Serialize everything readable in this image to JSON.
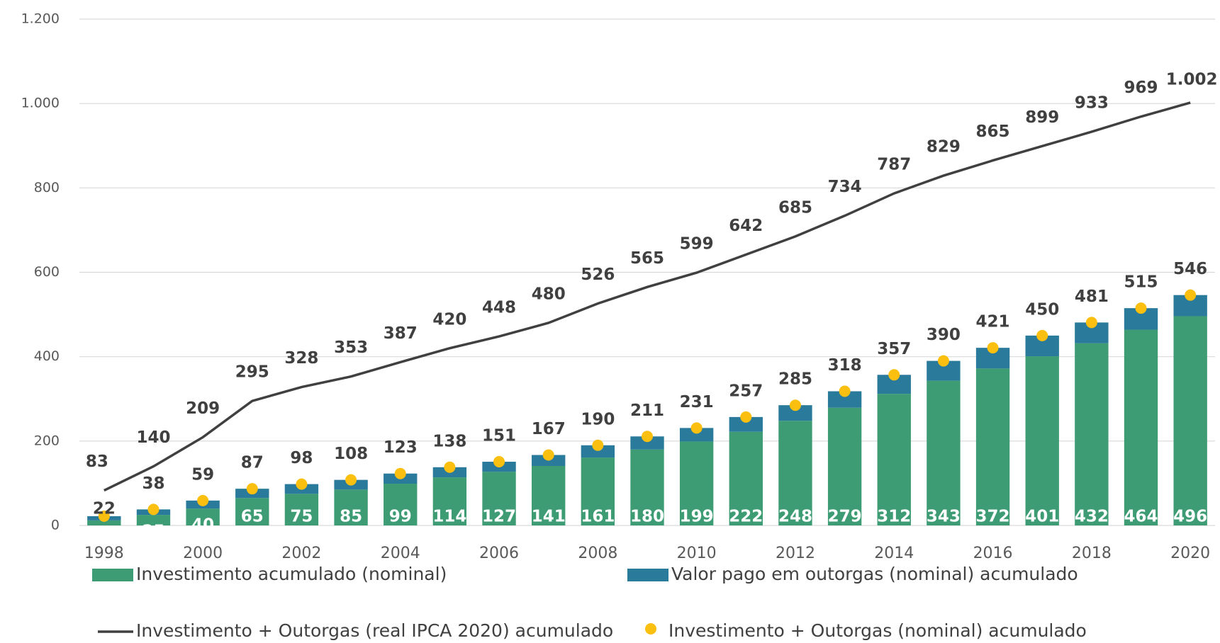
{
  "chart_data": {
    "type": "bar",
    "categories": [
      "1998",
      null,
      "2000",
      null,
      "2002",
      null,
      "2004",
      null,
      "2006",
      null,
      "2008",
      null,
      "2010",
      null,
      "2012",
      null,
      "2014",
      null,
      "2016",
      null,
      "2018",
      null,
      "2020"
    ],
    "series": [
      {
        "name": "Investimento acumulado (nominal)",
        "type": "bar",
        "color": "#3d9c73",
        "values": [
          12,
          25,
          40,
          65,
          75,
          85,
          99,
          114,
          127,
          141,
          161,
          180,
          199,
          222,
          248,
          279,
          312,
          343,
          372,
          401,
          432,
          464,
          496
        ]
      },
      {
        "name": "Valor pago em outorgas (nominal) acumulado",
        "type": "bar",
        "color": "#2a7a9b",
        "values": [
          10,
          13,
          19,
          22,
          23,
          23,
          24,
          24,
          24,
          26,
          29,
          31,
          32,
          35,
          37,
          39,
          45,
          47,
          49,
          49,
          49,
          51,
          50
        ]
      },
      {
        "name": "Investimento + Outorgas (real IPCA 2020) acumulado",
        "type": "line",
        "color": "#404040",
        "values": [
          83,
          140,
          209,
          295,
          328,
          353,
          387,
          420,
          448,
          480,
          526,
          565,
          599,
          642,
          685,
          734,
          787,
          829,
          865,
          899,
          933,
          969,
          1002
        ],
        "value_labels": [
          "83",
          "140",
          "209",
          "295",
          "328",
          "353",
          "387",
          "420",
          "448",
          "480",
          "526",
          "565",
          "599",
          "642",
          "685",
          "734",
          "787",
          "829",
          "865",
          "899",
          "933",
          "969",
          "1.002"
        ]
      },
      {
        "name": "Investimento + Outorgas (nominal) acumulado",
        "type": "scatter",
        "color": "#fbbf10",
        "values": [
          22,
          38,
          59,
          87,
          98,
          108,
          123,
          138,
          151,
          167,
          190,
          211,
          231,
          257,
          285,
          318,
          357,
          390,
          421,
          450,
          481,
          515,
          546
        ]
      }
    ],
    "ylim": [
      0,
      1200
    ],
    "yticks": [
      0,
      200,
      400,
      600,
      800,
      {
        "value": 1000,
        "label": "1.000"
      },
      {
        "value": 1200,
        "label": "1.200"
      }
    ],
    "grid": true
  }
}
